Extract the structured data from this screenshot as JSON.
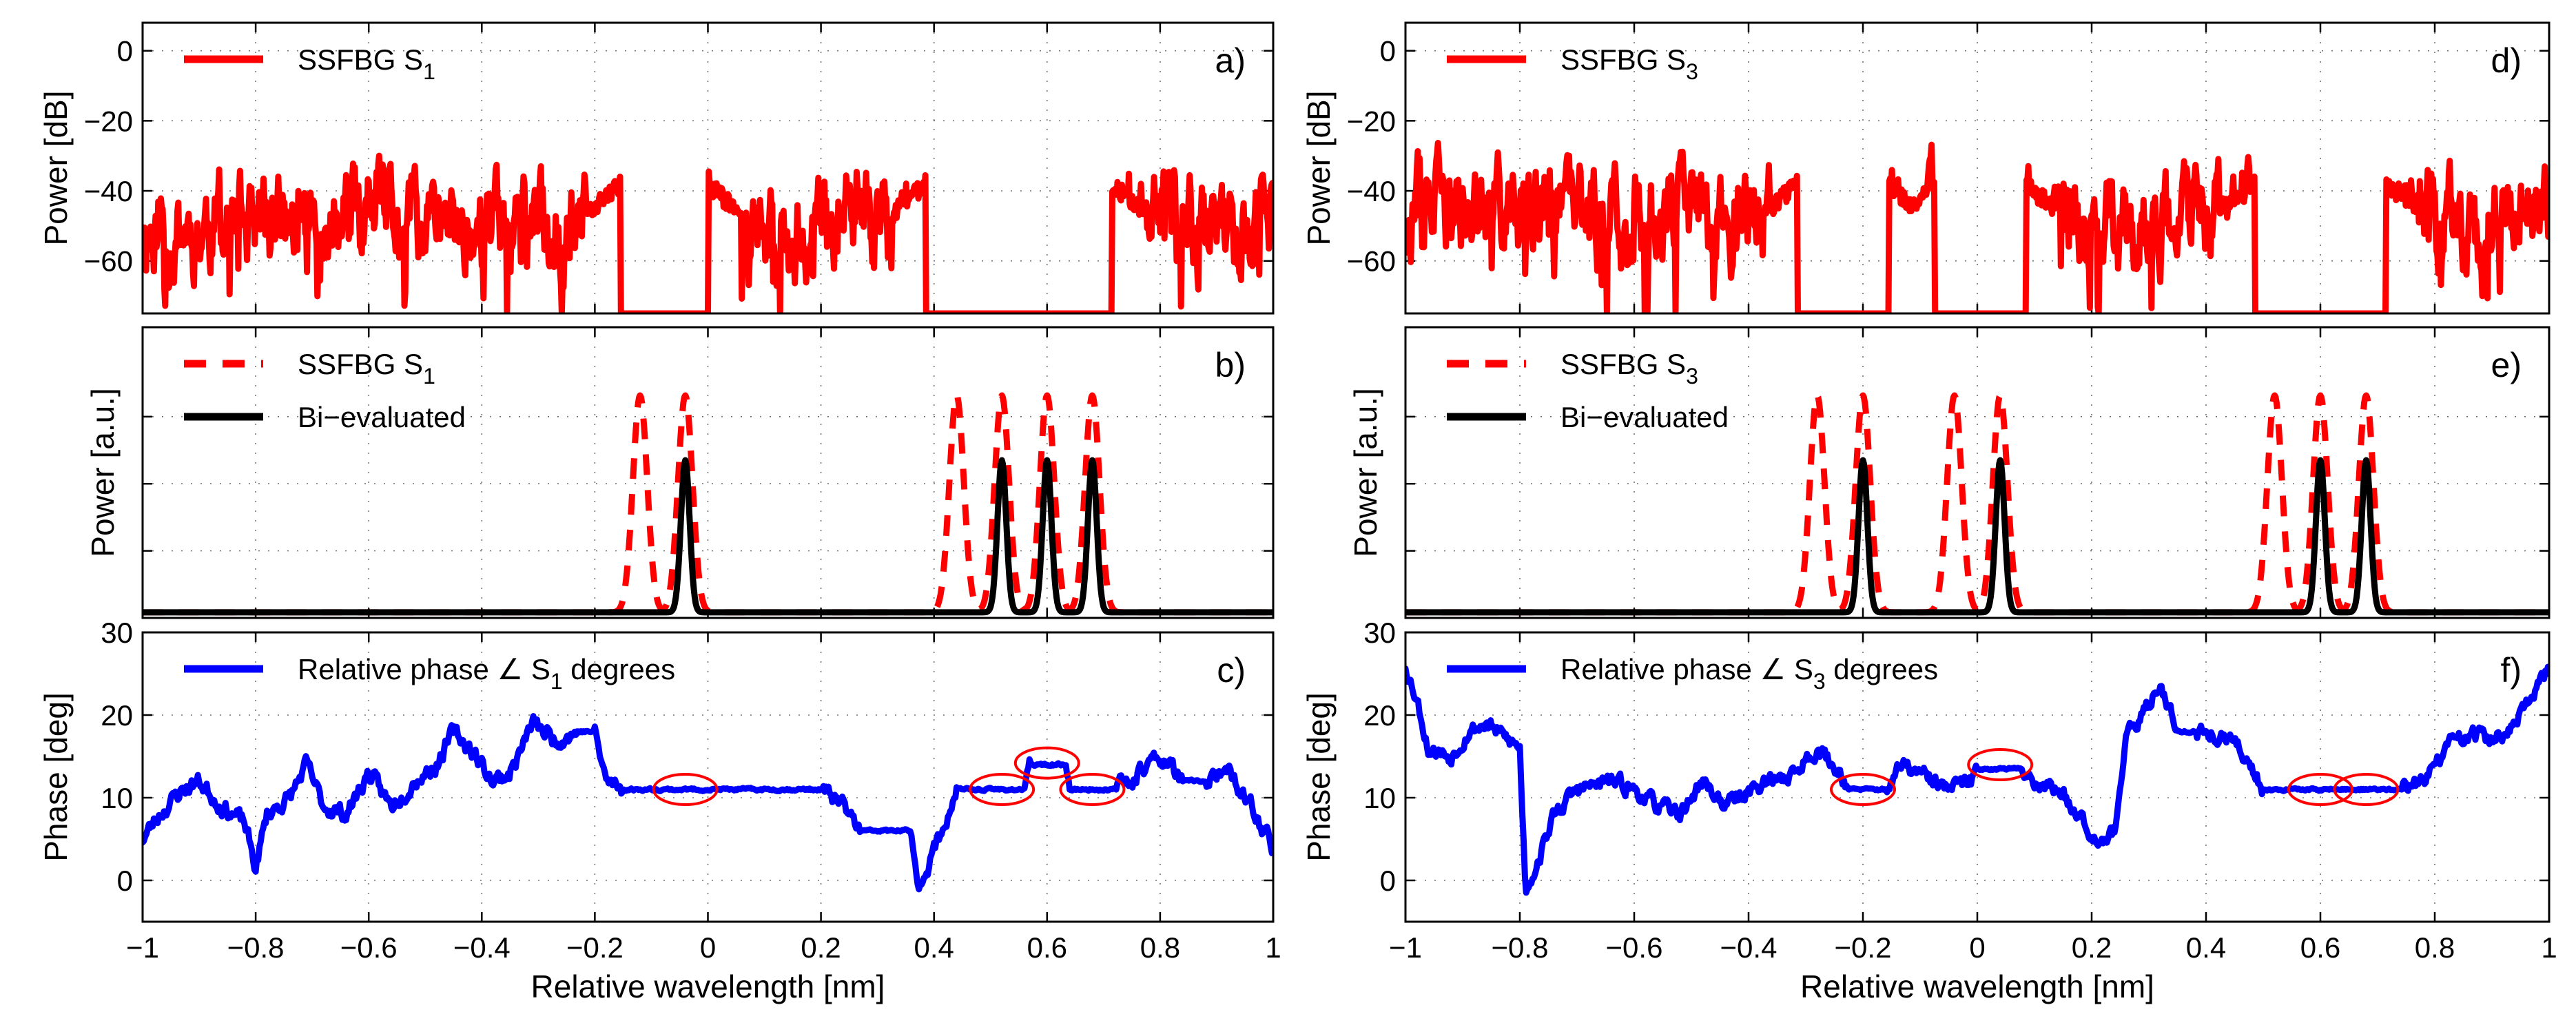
{
  "colors": {
    "power": "#ff0000",
    "evaluated": "#000000",
    "phase": "#0000ff",
    "marker": "#ff0000"
  },
  "figure": {
    "xlabel": "Relative wavelength [nm]",
    "xticks": [
      -1,
      -0.8,
      -0.6,
      -0.4,
      -0.2,
      0,
      0.2,
      0.4,
      0.6,
      0.8,
      1
    ],
    "xtick_labels": [
      "−1",
      "−0.8",
      "−0.6",
      "−0.4",
      "−0.2",
      "0",
      "0.2",
      "0.4",
      "0.6",
      "0.8",
      "1"
    ]
  },
  "chart_data": [
    {
      "id": "a",
      "panel_label": "a)",
      "column": "left",
      "row": "power-db",
      "type": "line",
      "ylabel": "Power [dB]",
      "xlim": [
        -1,
        1
      ],
      "ylim": [
        -75,
        8
      ],
      "yticks": [
        0,
        -20,
        -40,
        -60
      ],
      "ytick_labels": [
        "0",
        "−20",
        "−40",
        "−60"
      ],
      "legend": [
        {
          "main": "SSFBG S",
          "sub": "1",
          "style": "solid",
          "color": "#ff0000"
        }
      ],
      "series": [
        {
          "name": "SSFBG S1",
          "color": "#ff0000",
          "style": "solid",
          "noise_seed": 11,
          "passbands": [
            [
              -0.155,
              0.0
            ],
            [
              0.385,
              0.715
            ]
          ],
          "peaks": [
            -0.12,
            -0.04,
            0.44,
            0.52,
            0.6,
            0.68
          ],
          "peak_db": -3,
          "notch_db": -22,
          "floor_db": -50,
          "noise_amp": 18
        }
      ]
    },
    {
      "id": "b",
      "panel_label": "b)",
      "column": "left",
      "row": "power-au",
      "type": "line",
      "ylabel": "Power [a.u.]",
      "xlim": [
        -1,
        1
      ],
      "ylim": [
        0,
        1.3
      ],
      "yticks": [
        0.3,
        0.6,
        0.9
      ],
      "ytick_labels": [],
      "legend": [
        {
          "main": "SSFBG S",
          "sub": "1",
          "style": "dashed",
          "color": "#ff0000"
        },
        {
          "main": "Bi−evaluated",
          "sub": "",
          "style": "solid",
          "color": "#000000"
        }
      ],
      "series": [
        {
          "name": "SSFBG S1",
          "color": "#ff0000",
          "style": "dashed",
          "peaks": [
            -0.12,
            -0.04,
            0.44,
            0.52,
            0.6,
            0.68
          ],
          "height": 0.97,
          "width": 0.018
        },
        {
          "name": "Bi-evaluated",
          "color": "#000000",
          "style": "solid",
          "peaks": [
            -0.04,
            0.52,
            0.6,
            0.68
          ],
          "height": 0.68,
          "width": 0.011
        }
      ]
    },
    {
      "id": "c",
      "panel_label": "c)",
      "column": "left",
      "row": "phase",
      "type": "line",
      "ylabel": "Phase [deg]",
      "xlim": [
        -1,
        1
      ],
      "ylim": [
        -5,
        30
      ],
      "yticks": [
        0,
        10,
        20,
        30
      ],
      "ytick_labels": [
        "0",
        "10",
        "20",
        "30"
      ],
      "legend": [
        {
          "main": "Relative phase ∠ S",
          "sub": "1",
          "tail": " degrees",
          "style": "solid",
          "color": "#0000ff"
        }
      ],
      "series": [
        {
          "name": "Relative phase S1",
          "color": "#0000ff",
          "style": "solid",
          "noise_seed": 23,
          "noise_amp": 1.6,
          "knots": [
            [
              -1,
              5
            ],
            [
              -0.97,
              8
            ],
            [
              -0.93,
              11
            ],
            [
              -0.9,
              12
            ],
            [
              -0.86,
              9
            ],
            [
              -0.82,
              7
            ],
            [
              -0.8,
              1.5
            ],
            [
              -0.78,
              8
            ],
            [
              -0.74,
              10
            ],
            [
              -0.71,
              14
            ],
            [
              -0.68,
              9
            ],
            [
              -0.64,
              8
            ],
            [
              -0.6,
              13
            ],
            [
              -0.56,
              9
            ],
            [
              -0.52,
              12
            ],
            [
              -0.48,
              14
            ],
            [
              -0.45,
              18
            ],
            [
              -0.42,
              16
            ],
            [
              -0.38,
              12
            ],
            [
              -0.35,
              13
            ],
            [
              -0.31,
              19
            ],
            [
              -0.27,
              17
            ],
            [
              -0.23,
              18
            ],
            [
              -0.2,
              18
            ],
            [
              -0.18,
              12
            ],
            [
              -0.15,
              11
            ],
            [
              -0.1,
              11
            ],
            [
              0,
              11
            ],
            [
              0.1,
              11
            ],
            [
              0.2,
              11
            ],
            [
              0.24,
              9
            ],
            [
              0.27,
              6
            ],
            [
              0.32,
              6
            ],
            [
              0.36,
              6
            ],
            [
              0.37,
              -1
            ],
            [
              0.39,
              2
            ],
            [
              0.42,
              7
            ],
            [
              0.44,
              11
            ],
            [
              0.56,
              11
            ],
            [
              0.57,
              14
            ],
            [
              0.635,
              14
            ],
            [
              0.64,
              11
            ],
            [
              0.72,
              11
            ],
            [
              0.76,
              13
            ],
            [
              0.8,
              15
            ],
            [
              0.84,
              12
            ],
            [
              0.88,
              12
            ],
            [
              0.92,
              13
            ],
            [
              0.96,
              9
            ],
            [
              1,
              4
            ]
          ]
        }
      ],
      "ellipses": [
        {
          "x": -0.04,
          "y": 11
        },
        {
          "x": 0.52,
          "y": 11
        },
        {
          "x": 0.6,
          "y": 14.2
        },
        {
          "x": 0.68,
          "y": 11
        }
      ]
    },
    {
      "id": "d",
      "panel_label": "d)",
      "column": "right",
      "row": "power-db",
      "type": "line",
      "ylabel": "Power [dB]",
      "xlim": [
        -1,
        1
      ],
      "ylim": [
        -75,
        8
      ],
      "yticks": [
        0,
        -20,
        -40,
        -60
      ],
      "ytick_labels": [
        "0",
        "−20",
        "−40",
        "−60"
      ],
      "legend": [
        {
          "main": "SSFBG S",
          "sub": "3",
          "style": "solid",
          "color": "#ff0000"
        }
      ],
      "series": [
        {
          "name": "SSFBG S3",
          "color": "#ff0000",
          "style": "solid",
          "noise_seed": 37,
          "passbands": [
            [
              -0.315,
              -0.155
            ],
            [
              -0.075,
              0.085
            ],
            [
              0.485,
              0.715
            ]
          ],
          "peaks": [
            -0.28,
            -0.2,
            -0.04,
            0.04,
            0.52,
            0.6,
            0.68
          ],
          "peak_db": -3,
          "notch_db": -22,
          "floor_db": -47,
          "noise_amp": 18
        }
      ]
    },
    {
      "id": "e",
      "panel_label": "e)",
      "column": "right",
      "row": "power-au",
      "type": "line",
      "ylabel": "Power [a.u.]",
      "xlim": [
        -1,
        1
      ],
      "ylim": [
        0,
        1.3
      ],
      "yticks": [
        0.3,
        0.6,
        0.9
      ],
      "ytick_labels": [],
      "legend": [
        {
          "main": "SSFBG S",
          "sub": "3",
          "style": "dashed",
          "color": "#ff0000"
        },
        {
          "main": "Bi−evaluated",
          "sub": "",
          "style": "solid",
          "color": "#000000"
        }
      ],
      "series": [
        {
          "name": "SSFBG S3",
          "color": "#ff0000",
          "style": "dashed",
          "peaks": [
            -0.28,
            -0.2,
            -0.04,
            0.04,
            0.52,
            0.6,
            0.68
          ],
          "height": 0.97,
          "width": 0.018
        },
        {
          "name": "Bi-evaluated",
          "color": "#000000",
          "style": "solid",
          "peaks": [
            -0.2,
            0.04,
            0.6,
            0.68
          ],
          "height": 0.68,
          "width": 0.011
        }
      ]
    },
    {
      "id": "f",
      "panel_label": "f)",
      "column": "right",
      "row": "phase",
      "type": "line",
      "ylabel": "Phase [deg]",
      "xlim": [
        -1,
        1
      ],
      "ylim": [
        -5,
        30
      ],
      "yticks": [
        0,
        10,
        20,
        30
      ],
      "ytick_labels": [
        "0",
        "10",
        "20",
        "30"
      ],
      "legend": [
        {
          "main": "Relative phase ∠ S",
          "sub": "3",
          "tail": " degrees",
          "style": "solid",
          "color": "#0000ff"
        }
      ],
      "series": [
        {
          "name": "Relative phase S3",
          "color": "#0000ff",
          "style": "solid",
          "noise_seed": 53,
          "noise_amp": 1.5,
          "knots": [
            [
              -1,
              26
            ],
            [
              -0.98,
              22
            ],
            [
              -0.96,
              16
            ],
            [
              -0.92,
              15
            ],
            [
              -0.89,
              18
            ],
            [
              -0.86,
              19
            ],
            [
              -0.82,
              17
            ],
            [
              -0.8,
              16
            ],
            [
              -0.79,
              -1
            ],
            [
              -0.77,
              2
            ],
            [
              -0.74,
              8
            ],
            [
              -0.7,
              11
            ],
            [
              -0.64,
              12
            ],
            [
              -0.6,
              11
            ],
            [
              -0.56,
              9
            ],
            [
              -0.52,
              8
            ],
            [
              -0.48,
              12
            ],
            [
              -0.44,
              9
            ],
            [
              -0.4,
              11
            ],
            [
              -0.36,
              12
            ],
            [
              -0.32,
              13
            ],
            [
              -0.28,
              16
            ],
            [
              -0.24,
              13
            ],
            [
              -0.22,
              11
            ],
            [
              -0.16,
              11
            ],
            [
              -0.13,
              14
            ],
            [
              -0.08,
              12
            ],
            [
              -0.05,
              11
            ],
            [
              -0.01,
              12
            ],
            [
              0.0,
              13.5
            ],
            [
              0.08,
              13.5
            ],
            [
              0.1,
              12
            ],
            [
              0.14,
              11
            ],
            [
              0.18,
              8
            ],
            [
              0.21,
              5
            ],
            [
              0.24,
              6
            ],
            [
              0.26,
              17
            ],
            [
              0.29,
              20
            ],
            [
              0.32,
              24
            ],
            [
              0.35,
              18
            ],
            [
              0.38,
              18
            ],
            [
              0.44,
              17
            ],
            [
              0.47,
              15
            ],
            [
              0.5,
              11
            ],
            [
              0.74,
              11
            ],
            [
              0.78,
              12
            ],
            [
              0.82,
              16
            ],
            [
              0.86,
              18
            ],
            [
              0.9,
              17
            ],
            [
              0.93,
              18
            ],
            [
              0.96,
              21
            ],
            [
              0.98,
              23
            ],
            [
              1,
              26
            ]
          ]
        }
      ],
      "ellipses": [
        {
          "x": -0.2,
          "y": 11
        },
        {
          "x": 0.04,
          "y": 14
        },
        {
          "x": 0.6,
          "y": 11
        },
        {
          "x": 0.68,
          "y": 11
        }
      ]
    }
  ]
}
